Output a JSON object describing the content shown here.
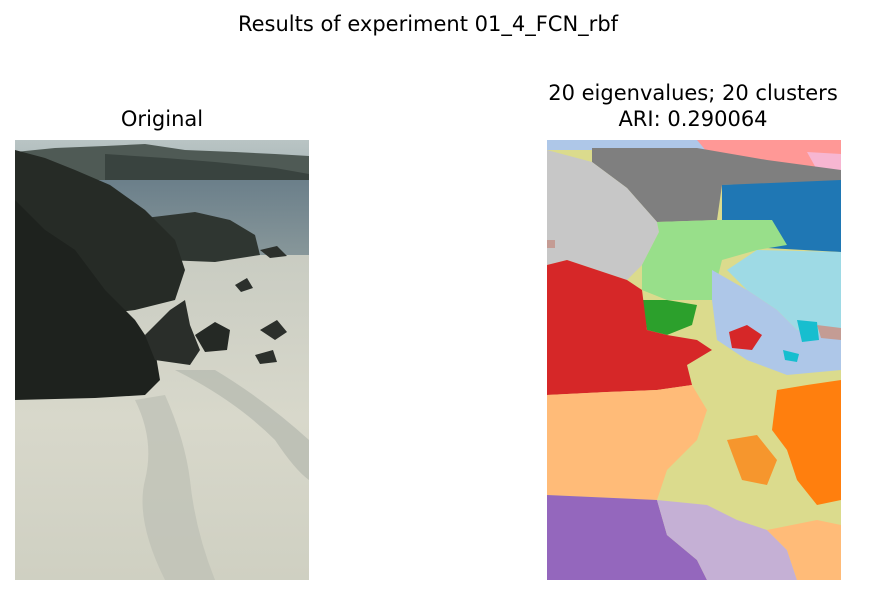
{
  "figure": {
    "suptitle": "Results of experiment 01_4_FCN_rbf"
  },
  "panels": {
    "original": {
      "title": "Original"
    },
    "segmentation": {
      "title_line1": "20 eigenvalues; 20 clusters",
      "title_line2": "ARI: 0.290064"
    }
  },
  "colors": {
    "gray": "#7f7f7f",
    "light_gray": "#c7c7c7",
    "blue": "#1f77b4",
    "light_green": "#98df8a",
    "green": "#2ca02c",
    "red": "#d62728",
    "light_blue": "#aec7e8",
    "cyan": "#17becf",
    "light_cyan": "#9edae5",
    "peach": "#ffbb78",
    "orange": "#ff7f0e",
    "olive": "#dbdb8d",
    "purple": "#9467bd",
    "lavender": "#c5b0d5",
    "pink": "#ffb6c1",
    "light_pink": "#f7b6d2",
    "brown": "#8c564b",
    "tan": "#c49c94"
  }
}
